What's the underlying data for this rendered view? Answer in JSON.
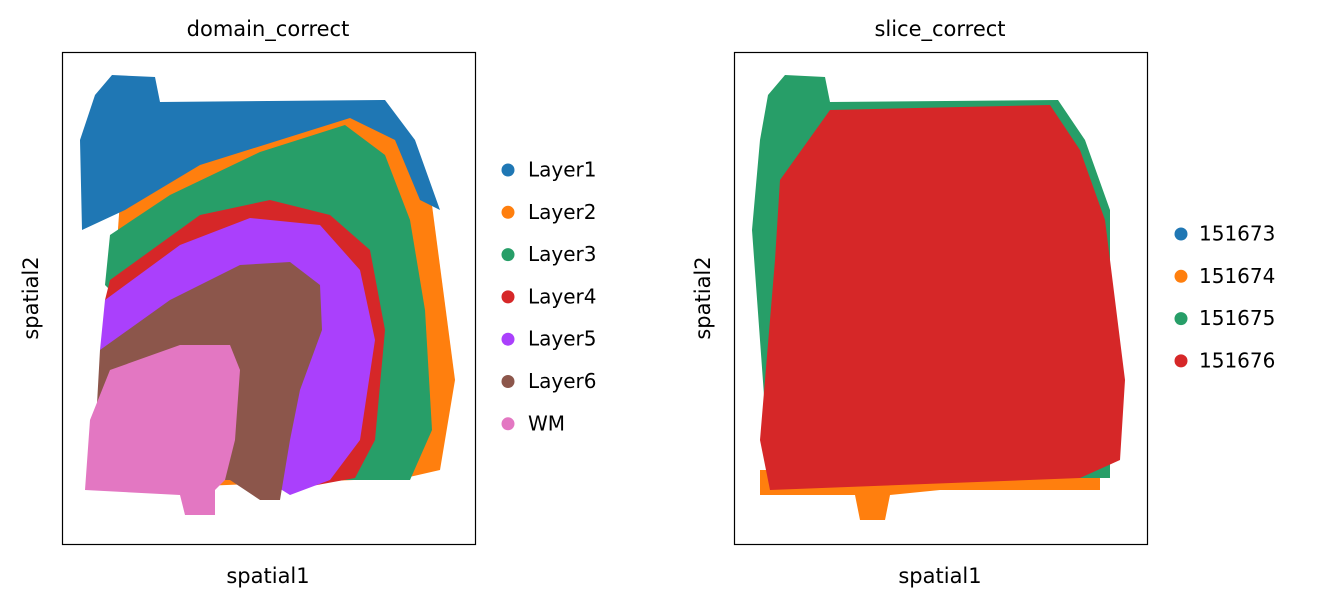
{
  "chart_data": [
    {
      "type": "scatter",
      "title": "domain_correct",
      "xlabel": "spatial1",
      "ylabel": "spatial2",
      "series": [
        {
          "name": "Layer1",
          "color": "#1f77b4"
        },
        {
          "name": "Layer2",
          "color": "#ff7f0e"
        },
        {
          "name": "Layer3",
          "color": "#279e68"
        },
        {
          "name": "Layer4",
          "color": "#d62728"
        },
        {
          "name": "Layer5",
          "color": "#aa40fc"
        },
        {
          "name": "Layer6",
          "color": "#8c564b"
        },
        {
          "name": "WM",
          "color": "#e377c2"
        }
      ]
    },
    {
      "type": "scatter",
      "title": "slice_correct",
      "xlabel": "spatial1",
      "ylabel": "spatial2",
      "series": [
        {
          "name": "151673",
          "color": "#1f77b4"
        },
        {
          "name": "151674",
          "color": "#ff7f0e"
        },
        {
          "name": "151675",
          "color": "#279e68"
        },
        {
          "name": "151676",
          "color": "#d62728"
        }
      ]
    }
  ]
}
